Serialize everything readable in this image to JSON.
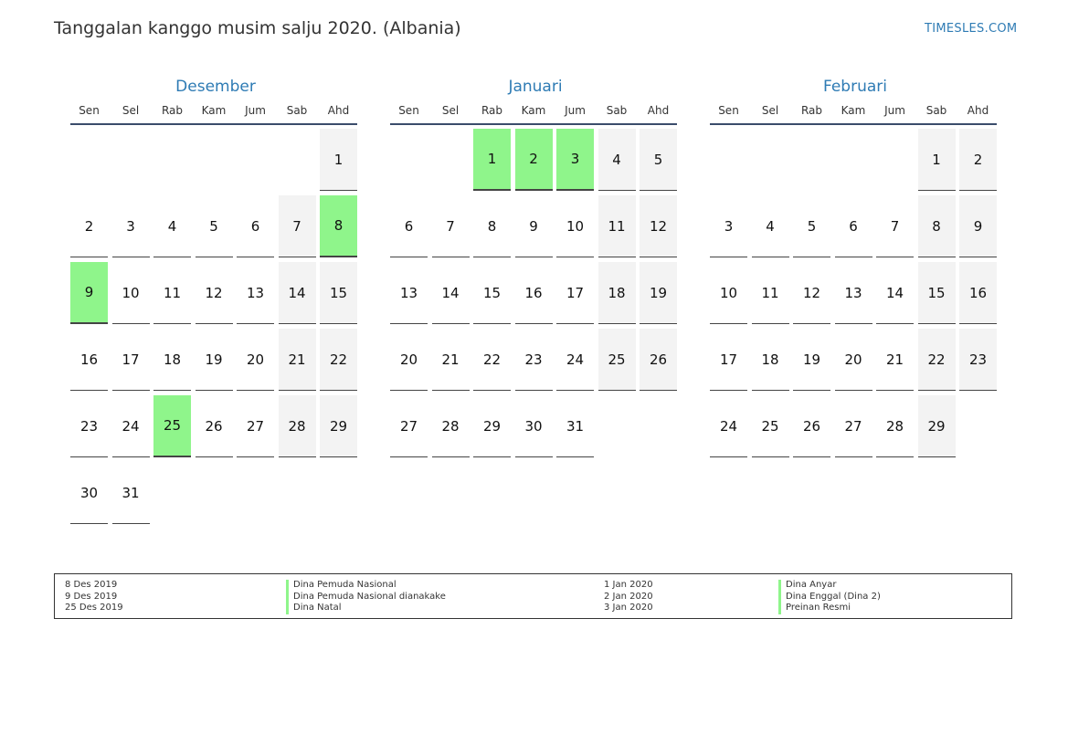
{
  "title": "Tanggalan kanggo musim salju 2020. (Albania)",
  "brand": "TIMESLES.COM",
  "colors": {
    "accent": "#2e7bb4",
    "holiday": "#8ff58b",
    "weekend": "#f3f3f3"
  },
  "weekdays": [
    "Sen",
    "Sel",
    "Rab",
    "Kam",
    "Jum",
    "Sab",
    "Ahd"
  ],
  "months": [
    {
      "name": "Desember",
      "first_weekday": 6,
      "days": 31,
      "holidays": [
        8,
        9,
        25
      ]
    },
    {
      "name": "Januari",
      "first_weekday": 2,
      "days": 31,
      "holidays": [
        1,
        2,
        3
      ]
    },
    {
      "name": "Februari",
      "first_weekday": 5,
      "days": 29,
      "holidays": []
    }
  ],
  "legend": {
    "left_dates": [
      "8 Des 2019",
      "9 Des 2019",
      "25 Des 2019"
    ],
    "left_names": [
      "Dina Pemuda Nasional",
      "Dina Pemuda Nasional dianakake",
      "Dina Natal"
    ],
    "right_dates": [
      "1 Jan 2020",
      "2 Jan 2020",
      "3 Jan 2020"
    ],
    "right_names": [
      "Dina Anyar",
      "Dina Enggal (Dina 2)",
      "Preinan Resmi"
    ]
  }
}
